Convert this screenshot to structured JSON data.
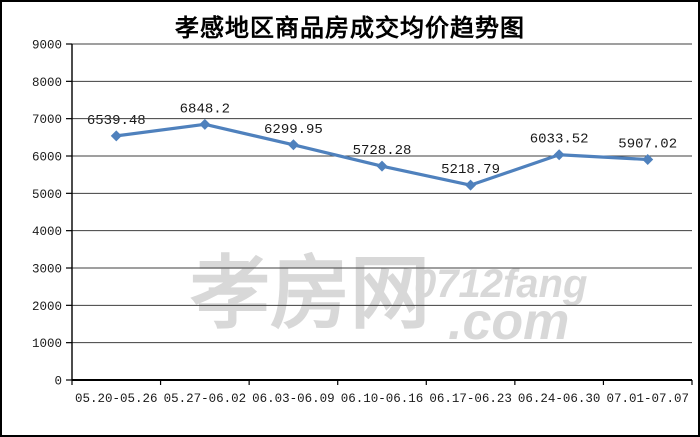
{
  "page": {
    "title": "孝感地区商品房成交均价趋势图"
  },
  "watermark": {
    "cjk_text": "孝房网",
    "latin_line1": "0712fang",
    "latin_line2": ".com",
    "color": "#d8d8d8"
  },
  "chart_data": {
    "type": "line",
    "title": "孝感地区商品房成交均价趋势图",
    "categories": [
      "05.20-05.26",
      "05.27-06.02",
      "06.03-06.09",
      "06.10-06.16",
      "06.17-06.23",
      "06.24-06.30",
      "07.01-07.07"
    ],
    "values": [
      6539.48,
      6848.2,
      6299.95,
      5728.28,
      5218.79,
      6033.52,
      5907.02
    ],
    "point_labels": [
      "6539.48",
      "6848.2",
      "6299.95",
      "5728.28",
      "5218.79",
      "6033.52",
      "5907.02"
    ],
    "xlabel": "",
    "ylabel": "",
    "ylim": [
      0,
      9000
    ],
    "yticks": [
      0,
      1000,
      2000,
      3000,
      4000,
      5000,
      6000,
      7000,
      8000,
      9000
    ],
    "grid": true,
    "legend": "none",
    "line_color": "#4f81bd",
    "marker": "diamond",
    "marker_color": "#4f81bd"
  }
}
